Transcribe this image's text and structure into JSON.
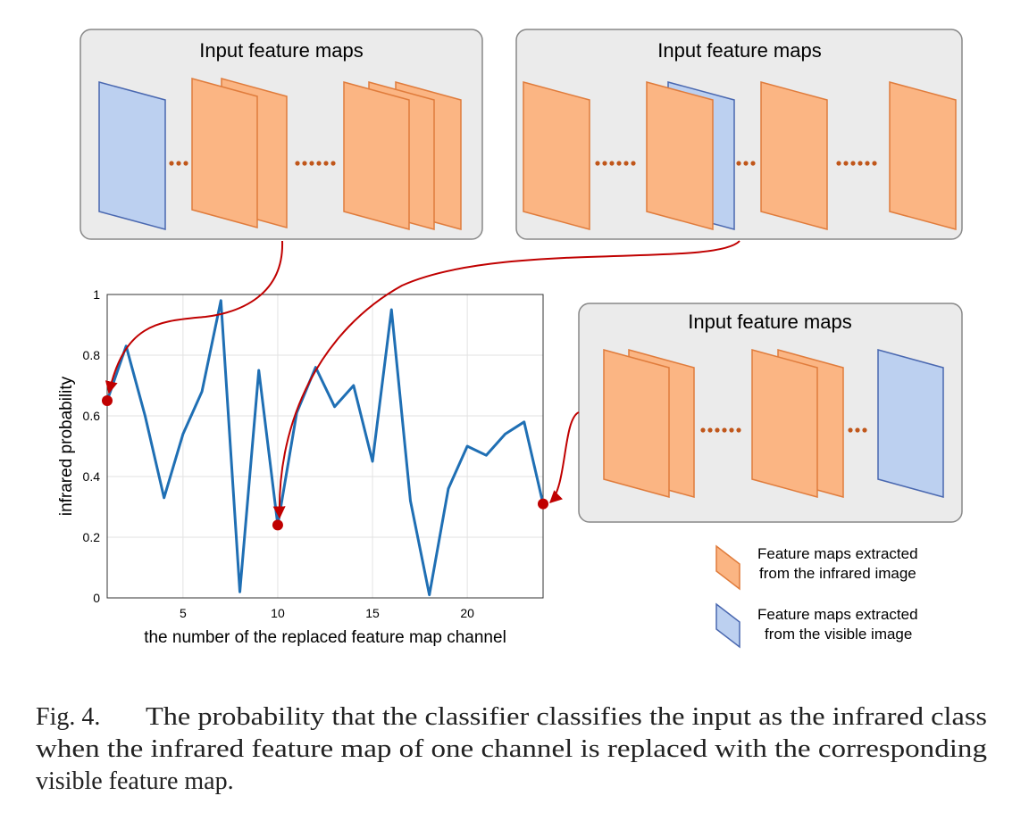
{
  "chart_data": {
    "type": "line",
    "xlabel": "the number of the replaced feature map channel",
    "ylabel": "infrared probability",
    "x": [
      1,
      2,
      3,
      4,
      5,
      6,
      7,
      8,
      9,
      10,
      11,
      12,
      13,
      14,
      15,
      16,
      17,
      18,
      19,
      20,
      21,
      22,
      23,
      24
    ],
    "series": [
      {
        "color": "#1f6fb4",
        "values": [
          0.65,
          0.83,
          0.6,
          0.33,
          0.54,
          0.68,
          0.98,
          0.02,
          0.75,
          0.24,
          0.61,
          0.76,
          0.63,
          0.7,
          0.45,
          0.95,
          0.32,
          0.01,
          0.36,
          0.5,
          0.47,
          0.54,
          0.58,
          0.31
        ]
      }
    ],
    "highlight_x": [
      1,
      10,
      24
    ],
    "highlight_color": "#c00000",
    "xlim": [
      1,
      24
    ],
    "xticks": [
      5,
      10,
      15,
      20
    ],
    "ylim": [
      0,
      1
    ],
    "yticks": [
      0,
      0.2,
      0.4,
      0.6,
      0.8,
      1
    ],
    "grid": true
  },
  "panels": [
    {
      "title": "Input feature maps"
    },
    {
      "title": "Input feature maps"
    },
    {
      "title": "Input feature maps"
    }
  ],
  "legend": [
    {
      "lines": [
        "Feature maps extracted",
        "from the infrared image"
      ]
    },
    {
      "lines": [
        "Feature maps extracted",
        "from the visible image"
      ]
    }
  ],
  "caption": {
    "label": "Fig. 4.",
    "lines": [
      "The probability that the classifier classifies the input as the infrared class",
      "when the infrared feature map of one channel is replaced with the corresponding",
      "visible feature map."
    ]
  }
}
